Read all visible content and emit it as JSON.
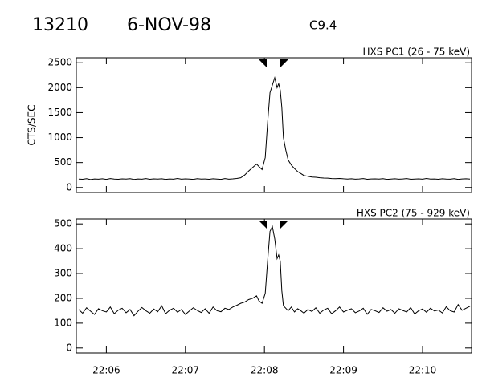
{
  "header": {
    "id": "13210",
    "date": "6-NOV-98",
    "class": "C9.4"
  },
  "chart_data": [
    {
      "type": "line",
      "title": "HXS PC1 (26 - 75 keV)",
      "y_label": "CTS/SEC",
      "xlim": [
        1325.62,
        1330.62
      ],
      "ylim": [
        -100,
        2600
      ],
      "yticks": [
        0,
        500,
        1000,
        1500,
        2000,
        2500
      ],
      "series": [
        {
          "name": "HXS PC1",
          "color": "#000000",
          "x": [
            1325.65,
            1325.7,
            1325.75,
            1325.8,
            1325.85,
            1325.9,
            1325.95,
            1326.0,
            1326.05,
            1326.1,
            1326.15,
            1326.2,
            1326.25,
            1326.3,
            1326.35,
            1326.4,
            1326.45,
            1326.5,
            1326.55,
            1326.6,
            1326.65,
            1326.7,
            1326.75,
            1326.8,
            1326.85,
            1326.9,
            1326.95,
            1327.0,
            1327.05,
            1327.1,
            1327.15,
            1327.2,
            1327.25,
            1327.3,
            1327.35,
            1327.4,
            1327.45,
            1327.5,
            1327.55,
            1327.6,
            1327.65,
            1327.7,
            1327.75,
            1327.8,
            1327.85,
            1327.9,
            1327.93,
            1327.97,
            1328.01,
            1328.04,
            1328.07,
            1328.1,
            1328.13,
            1328.16,
            1328.18,
            1328.2,
            1328.22,
            1328.24,
            1328.27,
            1328.3,
            1328.34,
            1328.38,
            1328.42,
            1328.46,
            1328.5,
            1328.55,
            1328.6,
            1328.65,
            1328.7,
            1328.75,
            1328.8,
            1328.85,
            1328.9,
            1328.95,
            1329.0,
            1329.05,
            1329.1,
            1329.15,
            1329.2,
            1329.25,
            1329.3,
            1329.35,
            1329.4,
            1329.45,
            1329.5,
            1329.55,
            1329.6,
            1329.65,
            1329.7,
            1329.75,
            1329.8,
            1329.85,
            1329.9,
            1329.95,
            1330.0,
            1330.05,
            1330.1,
            1330.15,
            1330.2,
            1330.25,
            1330.3,
            1330.35,
            1330.4,
            1330.45,
            1330.5,
            1330.55,
            1330.6
          ],
          "values": [
            170,
            165,
            178,
            160,
            172,
            168,
            175,
            163,
            180,
            170,
            166,
            174,
            169,
            177,
            162,
            171,
            168,
            180,
            165,
            173,
            170,
            176,
            164,
            172,
            168,
            181,
            167,
            174,
            170,
            163,
            178,
            169,
            172,
            166,
            175,
            170,
            164,
            179,
            168,
            173,
            182,
            195,
            250,
            330,
            400,
            470,
            420,
            360,
            600,
            1300,
            1900,
            2050,
            2200,
            2000,
            2080,
            1950,
            1600,
            1000,
            750,
            550,
            450,
            380,
            320,
            280,
            240,
            225,
            210,
            205,
            195,
            190,
            188,
            180,
            178,
            182,
            175,
            170,
            176,
            168,
            172,
            180,
            165,
            171,
            174,
            169,
            177,
            163,
            170,
            175,
            168,
            172,
            179,
            166,
            170,
            174,
            167,
            181,
            169,
            172,
            165,
            176,
            170,
            168,
            178,
            164,
            171,
            175,
            169
          ]
        }
      ]
    },
    {
      "type": "line",
      "title": "HXS PC2 (75 - 929 keV)",
      "xlim": [
        1325.62,
        1330.62
      ],
      "ylim": [
        -20,
        520
      ],
      "yticks": [
        0,
        100,
        200,
        300,
        400,
        500
      ],
      "xticks": [
        {
          "value": 1326,
          "label": "22:06"
        },
        {
          "value": 1327,
          "label": "22:07"
        },
        {
          "value": 1328,
          "label": "22:08"
        },
        {
          "value": 1329,
          "label": "22:09"
        },
        {
          "value": 1330,
          "label": "22:10"
        }
      ],
      "series": [
        {
          "name": "HXS PC2",
          "color": "#000000",
          "x": [
            1325.65,
            1325.7,
            1325.75,
            1325.8,
            1325.85,
            1325.9,
            1325.95,
            1326.0,
            1326.05,
            1326.1,
            1326.15,
            1326.2,
            1326.25,
            1326.3,
            1326.35,
            1326.4,
            1326.45,
            1326.5,
            1326.55,
            1326.6,
            1326.65,
            1326.7,
            1326.75,
            1326.8,
            1326.85,
            1326.9,
            1326.95,
            1327.0,
            1327.05,
            1327.1,
            1327.15,
            1327.2,
            1327.25,
            1327.3,
            1327.35,
            1327.4,
            1327.45,
            1327.5,
            1327.55,
            1327.6,
            1327.65,
            1327.7,
            1327.75,
            1327.8,
            1327.85,
            1327.9,
            1327.93,
            1327.97,
            1328.01,
            1328.04,
            1328.07,
            1328.1,
            1328.13,
            1328.16,
            1328.18,
            1328.2,
            1328.22,
            1328.24,
            1328.27,
            1328.3,
            1328.34,
            1328.38,
            1328.42,
            1328.46,
            1328.5,
            1328.55,
            1328.6,
            1328.65,
            1328.7,
            1328.75,
            1328.8,
            1328.85,
            1328.9,
            1328.95,
            1329.0,
            1329.05,
            1329.1,
            1329.15,
            1329.2,
            1329.25,
            1329.3,
            1329.35,
            1329.4,
            1329.45,
            1329.5,
            1329.55,
            1329.6,
            1329.65,
            1329.7,
            1329.75,
            1329.8,
            1329.85,
            1329.9,
            1329.95,
            1330.0,
            1330.05,
            1330.1,
            1330.15,
            1330.2,
            1330.25,
            1330.3,
            1330.35,
            1330.4,
            1330.45,
            1330.5,
            1330.55,
            1330.6
          ],
          "values": [
            155,
            140,
            162,
            148,
            135,
            158,
            150,
            145,
            165,
            138,
            152,
            160,
            142,
            155,
            130,
            148,
            163,
            150,
            140,
            157,
            146,
            170,
            138,
            152,
            160,
            144,
            155,
            135,
            149,
            162,
            151,
            143,
            158,
            140,
            165,
            150,
            146,
            160,
            155,
            165,
            172,
            180,
            185,
            195,
            200,
            210,
            190,
            180,
            220,
            350,
            470,
            490,
            440,
            360,
            375,
            350,
            230,
            170,
            160,
            150,
            165,
            145,
            158,
            150,
            140,
            155,
            147,
            162,
            140,
            153,
            160,
            138,
            150,
            165,
            145,
            152,
            158,
            142,
            149,
            160,
            136,
            155,
            150,
            143,
            162,
            148,
            155,
            140,
            158,
            151,
            145,
            163,
            137,
            150,
            157,
            144,
            160,
            149,
            153,
            141,
            166,
            150,
            145,
            175,
            152,
            160,
            168
          ]
        }
      ]
    }
  ]
}
